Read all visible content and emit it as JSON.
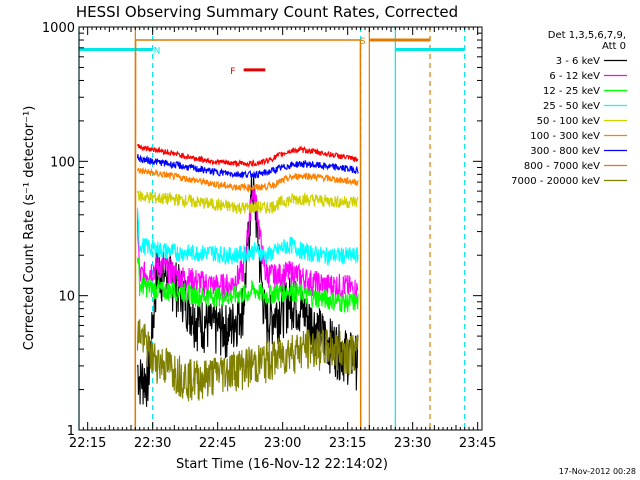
{
  "chart_data": {
    "type": "line",
    "title": "HESSI Observing Summary Count Rates, Corrected",
    "xlabel": "Start Time (16-Nov-12 22:14:02)",
    "ylabel": "Corrected Count Rate (s⁻¹ detector⁻¹)",
    "yscale": "log",
    "ylim": [
      1,
      1000
    ],
    "xlim_minutes_after_2214": [
      -1,
      92
    ],
    "x_ticks": [
      "22:15",
      "22:30",
      "22:45",
      "23:00",
      "23:15",
      "23:30",
      "23:45"
    ],
    "x_tick_minutes": [
      1,
      16,
      31,
      46,
      61,
      76,
      91
    ],
    "y_ticks": [
      "1",
      "10",
      "100",
      "1000"
    ],
    "y_tick_values": [
      1,
      10,
      100,
      1000
    ],
    "legend_header": [
      "Det 1,3,5,6,7,9,",
      "Att 0"
    ],
    "legend_position": "right",
    "footer_timestamp": "17-Nov-2012 00:28",
    "flags": [
      {
        "label": "N",
        "color": "#00e5e5",
        "start_min": -1,
        "end_min": 16,
        "level": 680,
        "label_min": 17
      },
      {
        "label": "F",
        "color": "#e00000",
        "start_min": 37,
        "end_min": 42,
        "level": 480,
        "label_min": 34.5
      },
      {
        "label": "S",
        "color": "#e07b00",
        "start_min": 66,
        "end_min": 80,
        "level": 800,
        "label_min": 64.5
      },
      {
        "label": "",
        "color": "#00e5e5",
        "start_min": 72,
        "end_min": 88,
        "level": 680,
        "label_min": 0
      }
    ],
    "vlines": [
      {
        "minute": -1,
        "color": "#00e5e5",
        "dashed": false
      },
      {
        "minute": 16,
        "color": "#00e5e5",
        "dashed": true
      },
      {
        "minute": 12,
        "color": "#e07b00",
        "dashed": false
      },
      {
        "minute": 64,
        "color": "#00e5e5",
        "dashed": true
      },
      {
        "minute": 66,
        "color": "#e07b00",
        "dashed": false
      },
      {
        "minute": 72,
        "color": "#00e5e5",
        "dashed": false
      },
      {
        "minute": 80,
        "color": "#e07b00",
        "dashed": true
      },
      {
        "minute": 88,
        "color": "#00e5e5",
        "dashed": true
      }
    ],
    "data_start_min": 12,
    "data_end_min": 64,
    "series": [
      {
        "name": "3 - 6 keV",
        "color": "#000000",
        "x": [
          12.5,
          13,
          15,
          17,
          20,
          23,
          26,
          30,
          34,
          37,
          38,
          39,
          40,
          41,
          42,
          43,
          45,
          48,
          52,
          56,
          60,
          63.5
        ],
        "y": [
          3,
          2.5,
          2.5,
          16,
          14,
          11,
          7,
          6,
          6,
          9,
          25,
          70,
          38,
          14,
          7,
          7,
          8,
          10,
          7,
          5,
          4,
          3.5
        ]
      },
      {
        "name": "6 - 12 keV",
        "color": "#ff00ff",
        "x": [
          12.5,
          13,
          16,
          18,
          22,
          26,
          30,
          34,
          37,
          38,
          39,
          40,
          41,
          42,
          44,
          48,
          52,
          56,
          60,
          63.5
        ],
        "y": [
          38,
          14,
          16,
          17,
          14,
          13,
          12,
          12,
          16,
          30,
          62,
          48,
          24,
          15,
          14,
          15,
          13,
          12,
          12,
          11
        ]
      },
      {
        "name": "12 - 25 keV",
        "color": "#00ff00",
        "x": [
          12.5,
          13,
          18,
          22,
          26,
          30,
          34,
          38,
          39,
          40,
          42,
          44,
          48,
          52,
          56,
          60,
          63.5
        ],
        "y": [
          22,
          12,
          11,
          11,
          10,
          10,
          10,
          10.5,
          11,
          11,
          10,
          10.5,
          11,
          10,
          9.5,
          9,
          9
        ]
      },
      {
        "name": "25 - 50 keV",
        "color": "#00ffff",
        "x": [
          12.5,
          13,
          18,
          22,
          26,
          30,
          34,
          38,
          40,
          42,
          44,
          46,
          48,
          50,
          52,
          56,
          60,
          63.5
        ],
        "y": [
          40,
          24,
          22,
          21,
          21,
          21,
          20,
          21,
          22,
          20,
          21,
          23,
          24,
          22,
          21,
          20,
          20,
          20
        ]
      },
      {
        "name": "50 - 100 keV",
        "color": "#d0d000",
        "x": [
          12.5,
          13,
          18,
          22,
          26,
          30,
          34,
          38,
          40,
          42,
          44,
          46,
          48,
          50,
          52,
          56,
          60,
          63.5
        ],
        "y": [
          60,
          55,
          53,
          52,
          50,
          48,
          46,
          45,
          46,
          45,
          47,
          50,
          52,
          53,
          52,
          51,
          50,
          50
        ]
      },
      {
        "name": "100 - 300 keV",
        "color": "#ff8000",
        "x": [
          12.5,
          13,
          18,
          22,
          26,
          30,
          34,
          38,
          40,
          42,
          44,
          46,
          48,
          50,
          52,
          56,
          60,
          63.5
        ],
        "y": [
          88,
          85,
          80,
          76,
          72,
          68,
          65,
          64,
          64,
          65,
          67,
          72,
          76,
          78,
          78,
          75,
          72,
          70
        ]
      },
      {
        "name": "300 - 800 keV",
        "color": "#0000ff",
        "x": [
          12.5,
          13,
          18,
          22,
          26,
          30,
          34,
          38,
          40,
          42,
          44,
          46,
          48,
          50,
          52,
          56,
          60,
          63.5
        ],
        "y": [
          108,
          104,
          98,
          93,
          88,
          84,
          81,
          80,
          80,
          82,
          86,
          90,
          94,
          96,
          95,
          92,
          89,
          86
        ]
      },
      {
        "name": "800 - 7000 keV",
        "color": "#e07b00",
        "x": [
          12,
          12.05,
          63.95,
          64
        ],
        "y": [
          1,
          800,
          800,
          1
        ]
      },
      {
        "name": "7000 - 20000 keV",
        "color": "#808000",
        "x": [
          12.5,
          13,
          16,
          20,
          24,
          28,
          32,
          36,
          40,
          44,
          48,
          52,
          56,
          60,
          63.5
        ],
        "y": [
          5,
          5.5,
          3.5,
          3,
          2.5,
          2.5,
          2.8,
          3,
          3.2,
          3.5,
          4,
          4.2,
          4.2,
          4,
          3.8
        ]
      }
    ],
    "top_series": {
      "color": "#ff0000",
      "x": [
        12.5,
        13,
        18,
        22,
        26,
        30,
        34,
        38,
        40,
        42,
        44,
        46,
        48,
        50,
        52,
        56,
        60,
        63.5
      ],
      "y": [
        135,
        128,
        120,
        112,
        105,
        100,
        97,
        96,
        97,
        100,
        106,
        114,
        120,
        122,
        120,
        114,
        108,
        102
      ]
    }
  }
}
